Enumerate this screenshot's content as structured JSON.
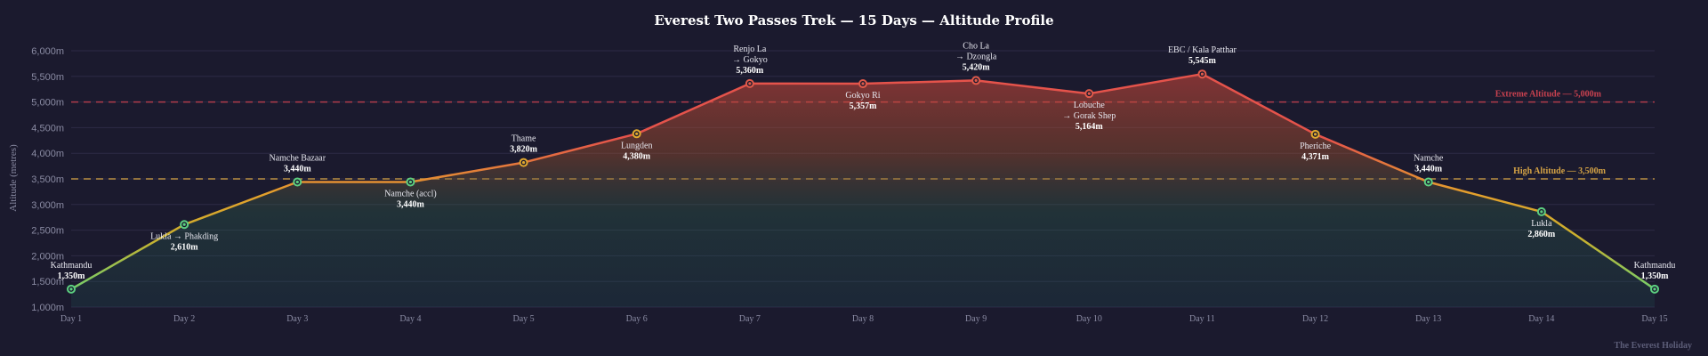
{
  "chart_data": {
    "type": "area",
    "title": "Everest Two Passes Trek — 15 Days — Altitude Profile",
    "xlabel": "",
    "ylabel": "Altitude (metres)",
    "ylim": [
      1000,
      6000
    ],
    "y_ticks": [
      1000,
      1500,
      2000,
      2500,
      3000,
      3500,
      4000,
      4500,
      5000,
      5500,
      6000
    ],
    "y_tick_labels": [
      "1,000m",
      "1,500m",
      "2,000m",
      "2,500m",
      "3,000m",
      "3,500m",
      "4,000m",
      "4,500m",
      "5,000m",
      "5,500m",
      "6,000m"
    ],
    "categories": [
      "Day 1",
      "Day 2",
      "Day 3",
      "Day 4",
      "Day 5",
      "Day 6",
      "Day 7",
      "Day 8",
      "Day 9",
      "Day 10",
      "Day 11",
      "Day 12",
      "Day 13",
      "Day 14",
      "Day 15"
    ],
    "values": [
      1350,
      2610,
      3440,
      3440,
      3820,
      4380,
      5360,
      5357,
      5420,
      5164,
      5545,
      4371,
      3440,
      2860,
      1350
    ],
    "points": [
      {
        "day": "Day 1",
        "lines": [
          "Kathmandu"
        ],
        "altitude": 1350,
        "altitude_label": "1,350m",
        "label_pos": "above"
      },
      {
        "day": "Day 2",
        "lines": [
          "Lukla → Phakding"
        ],
        "altitude": 2610,
        "altitude_label": "2,610m",
        "label_pos": "below"
      },
      {
        "day": "Day 3",
        "lines": [
          "Namche Bazaar"
        ],
        "altitude": 3440,
        "altitude_label": "3,440m",
        "label_pos": "above"
      },
      {
        "day": "Day 4",
        "lines": [
          "Namche (accl)"
        ],
        "altitude": 3440,
        "altitude_label": "3,440m",
        "label_pos": "below"
      },
      {
        "day": "Day 5",
        "lines": [
          "Thame"
        ],
        "altitude": 3820,
        "altitude_label": "3,820m",
        "label_pos": "above"
      },
      {
        "day": "Day 6",
        "lines": [
          "Lungden"
        ],
        "altitude": 4380,
        "altitude_label": "4,380m",
        "label_pos": "below"
      },
      {
        "day": "Day 7",
        "lines": [
          "Renjo La",
          "→ Gokyo"
        ],
        "altitude": 5360,
        "altitude_label": "5,360m",
        "label_pos": "above"
      },
      {
        "day": "Day 8",
        "lines": [
          "Gokyo Ri"
        ],
        "altitude": 5357,
        "altitude_label": "5,357m",
        "label_pos": "below"
      },
      {
        "day": "Day 9",
        "lines": [
          "Cho La",
          "→ Dzongla"
        ],
        "altitude": 5420,
        "altitude_label": "5,420m",
        "label_pos": "above"
      },
      {
        "day": "Day 10",
        "lines": [
          "Lobuche",
          "→ Gorak Shep"
        ],
        "altitude": 5164,
        "altitude_label": "5,164m",
        "label_pos": "below"
      },
      {
        "day": "Day 11",
        "lines": [
          "EBC / Kala Patthar"
        ],
        "altitude": 5545,
        "altitude_label": "5,545m",
        "label_pos": "above"
      },
      {
        "day": "Day 12",
        "lines": [
          "Pheriche"
        ],
        "altitude": 4371,
        "altitude_label": "4,371m",
        "label_pos": "below"
      },
      {
        "day": "Day 13",
        "lines": [
          "Namche"
        ],
        "altitude": 3440,
        "altitude_label": "3,440m",
        "label_pos": "above"
      },
      {
        "day": "Day 14",
        "lines": [
          "Lukla"
        ],
        "altitude": 2860,
        "altitude_label": "2,860m",
        "label_pos": "below"
      },
      {
        "day": "Day 15",
        "lines": [
          "Kathmandu"
        ],
        "altitude": 1350,
        "altitude_label": "1,350m",
        "label_pos": "above"
      }
    ],
    "reference_lines": [
      {
        "name": "extreme",
        "value": 5000,
        "label": "Extreme Altitude — 5,000m",
        "color": "#c8414f"
      },
      {
        "name": "high",
        "value": 3500,
        "label": "High Altitude — 3,500m",
        "color": "#d4a245"
      }
    ],
    "grid": true,
    "legend": "none"
  },
  "colors": {
    "background": "#1b1a2e",
    "grid": "#2c2b45",
    "low": "#5ccf80",
    "mid": "#e0a82e",
    "high": "#e05a4a"
  },
  "watermark": "The Everest Holiday"
}
